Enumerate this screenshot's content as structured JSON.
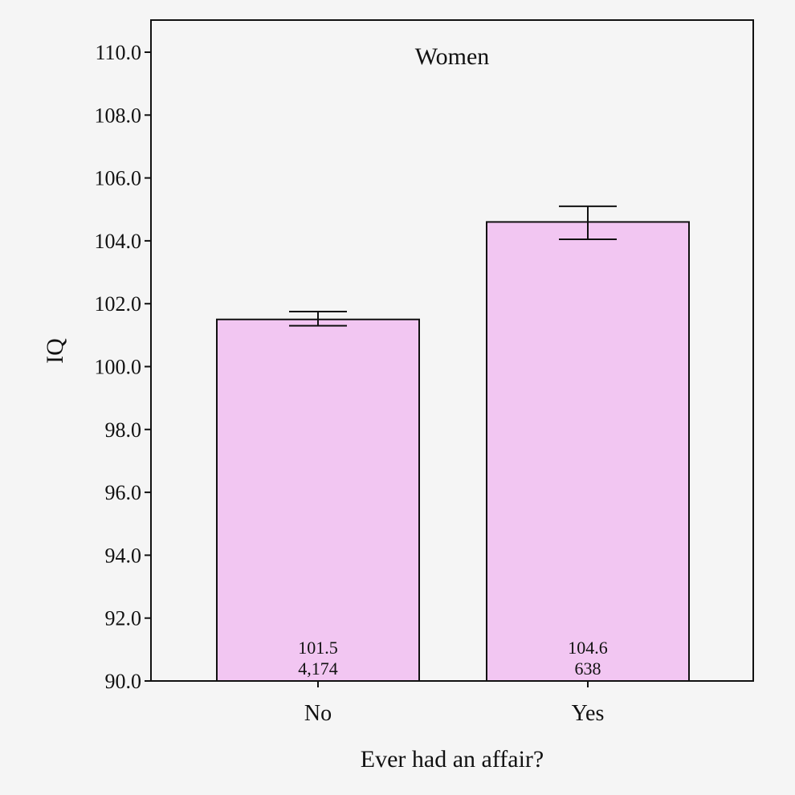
{
  "chart_data": {
    "type": "bar",
    "title": "Women",
    "xlabel": "Ever had an affair?",
    "ylabel": "IQ",
    "ylim": [
      90,
      110.0
    ],
    "yticks": [
      "90.0",
      "92.0",
      "94.0",
      "96.0",
      "98.0",
      "100.0",
      "102.0",
      "104.0",
      "106.0",
      "108.0",
      "110.0"
    ],
    "categories": [
      "No",
      "Yes"
    ],
    "values": [
      101.5,
      104.6
    ],
    "counts": [
      "4,174",
      "638"
    ],
    "value_labels": [
      "101.5",
      "104.6"
    ],
    "error_bars": [
      {
        "low": 101.3,
        "high": 101.75
      },
      {
        "low": 104.05,
        "high": 105.1
      }
    ],
    "bar_color": "#f2c6f2",
    "grid": false
  }
}
